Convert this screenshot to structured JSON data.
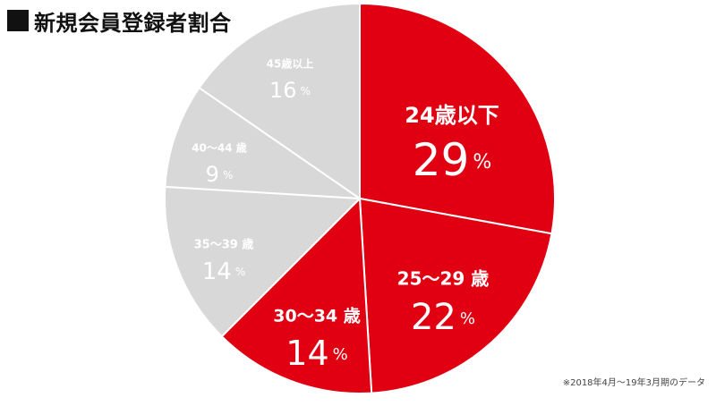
{
  "header": {
    "title": "新規会員登録者割合"
  },
  "chart_data": {
    "type": "pie",
    "title": "新規会員登録者割合",
    "categories": [
      "24歳以下",
      "25〜29 歳",
      "30〜34 歳",
      "35〜39 歳",
      "40〜44 歳",
      "45歳以上"
    ],
    "values": [
      29,
      22,
      14,
      14,
      9,
      16
    ],
    "unit": "%",
    "colors": [
      "#e00012",
      "#e00012",
      "#e00012",
      "#d8d8d8",
      "#d8d8d8",
      "#d8d8d8"
    ],
    "label_colors": [
      "#ffffff",
      "#ffffff",
      "#ffffff",
      "#ffffff",
      "#ffffff",
      "#ffffff"
    ],
    "legend": "none",
    "grid": false
  },
  "footnote": {
    "text": "※2018年4月〜19年3月期のデータ"
  }
}
